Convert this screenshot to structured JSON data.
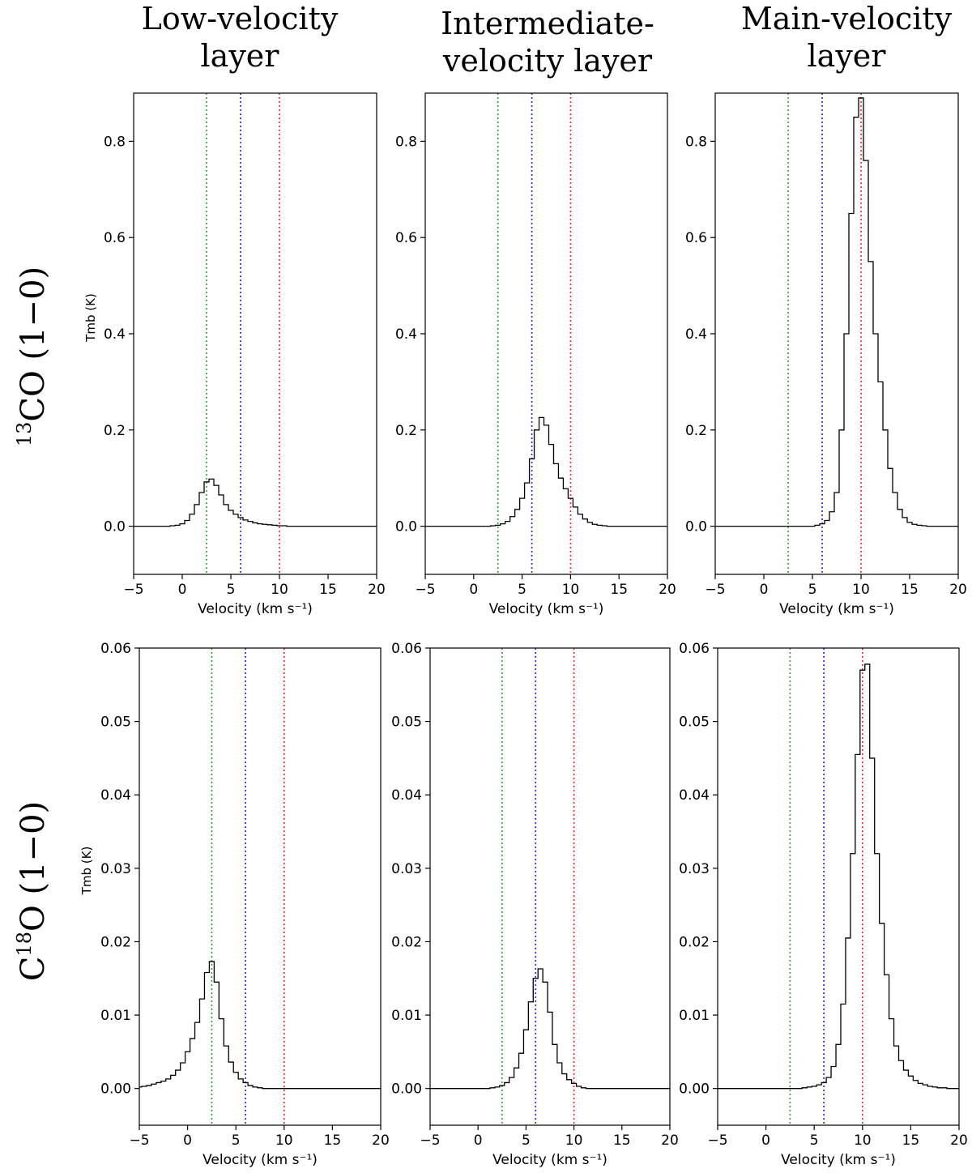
{
  "column_titles": [
    {
      "line1": "Low-velocity",
      "line2": "layer"
    },
    {
      "line1": "Intermediate-",
      "line2": "velocity layer"
    },
    {
      "line1": "Main-velocity",
      "line2": "layer"
    }
  ],
  "row_titles": [
    {
      "sup": "13",
      "main": "CO (1−0)",
      "prefix": ""
    },
    {
      "sup": "18",
      "main": "O (1−0)",
      "prefix": "C"
    }
  ],
  "colors": {
    "green": "#2ca02c",
    "blue": "#1f1fff",
    "red": "#ff2020",
    "line": "#000000"
  },
  "chart_data": [
    {
      "type": "line",
      "row": 0,
      "col": 0,
      "xlabel": "Velocity (km s⁻¹)",
      "ylabel": "Tmb (K)",
      "xlim": [
        -5,
        20
      ],
      "ylim": [
        -0.1,
        0.9
      ],
      "yticks": [
        0.0,
        0.2,
        0.4,
        0.6,
        0.8
      ],
      "ytick_labels": [
        "0.0",
        "0.2",
        "0.4",
        "0.6",
        "0.8"
      ],
      "xticks": [
        -5,
        0,
        5,
        10,
        15,
        20
      ],
      "vlines": [
        2.5,
        6,
        10
      ],
      "step": "mid",
      "x": [
        -5,
        -4.5,
        -4,
        -3.5,
        -3,
        -2.5,
        -2,
        -1.5,
        -1,
        -0.5,
        0,
        0.5,
        1,
        1.5,
        2,
        2.5,
        3,
        3.5,
        4,
        4.5,
        5,
        5.5,
        6,
        6.5,
        7,
        7.5,
        8,
        8.5,
        9,
        9.5,
        10,
        10.5,
        11,
        11.5,
        12,
        12.5,
        13,
        13.5,
        14,
        14.5,
        15,
        15.5,
        16,
        16.5,
        17,
        17.5,
        18,
        18.5,
        19,
        19.5,
        20
      ],
      "y": [
        0,
        0,
        0,
        0,
        0,
        0,
        0,
        0,
        0.001,
        0.002,
        0.005,
        0.012,
        0.025,
        0.045,
        0.07,
        0.092,
        0.098,
        0.085,
        0.065,
        0.045,
        0.033,
        0.025,
        0.018,
        0.013,
        0.01,
        0.007,
        0.005,
        0.004,
        0.003,
        0.002,
        0.001,
        0.001,
        0,
        0,
        0,
        0,
        0,
        0,
        0,
        0,
        0,
        0,
        0,
        0,
        0,
        0,
        0,
        0,
        0,
        0,
        0
      ]
    },
    {
      "type": "line",
      "row": 0,
      "col": 1,
      "xlabel": "Velocity (km s⁻¹)",
      "ylabel": "",
      "xlim": [
        -5,
        20
      ],
      "ylim": [
        -0.1,
        0.9
      ],
      "yticks": [
        0.0,
        0.2,
        0.4,
        0.6,
        0.8
      ],
      "ytick_labels": [
        "0.0",
        "0.2",
        "0.4",
        "0.6",
        "0.8"
      ],
      "xticks": [
        -5,
        0,
        5,
        10,
        15,
        20
      ],
      "vlines": [
        2.5,
        6,
        10
      ],
      "step": "mid",
      "x": [
        -5,
        -4.5,
        -4,
        -3.5,
        -3,
        -2.5,
        -2,
        -1.5,
        -1,
        -0.5,
        0,
        0.5,
        1,
        1.5,
        2,
        2.5,
        3,
        3.5,
        4,
        4.5,
        5,
        5.5,
        6,
        6.5,
        7,
        7.5,
        8,
        8.5,
        9,
        9.5,
        10,
        10.5,
        11,
        11.5,
        12,
        12.5,
        13,
        13.5,
        14,
        14.5,
        15,
        15.5,
        16,
        16.5,
        17,
        17.5,
        18,
        18.5,
        19,
        19.5,
        20
      ],
      "y": [
        0,
        0,
        0,
        0,
        0,
        0,
        0,
        0,
        0,
        0,
        0,
        0,
        0,
        0,
        0.001,
        0.002,
        0.005,
        0.01,
        0.02,
        0.035,
        0.058,
        0.09,
        0.14,
        0.2,
        0.226,
        0.21,
        0.17,
        0.13,
        0.1,
        0.078,
        0.058,
        0.04,
        0.025,
        0.015,
        0.008,
        0.004,
        0.002,
        0.001,
        0,
        0,
        0,
        0,
        0,
        0,
        0,
        0,
        0,
        0,
        0,
        0,
        0
      ]
    },
    {
      "type": "line",
      "row": 0,
      "col": 2,
      "xlabel": "Velocity (km s⁻¹)",
      "ylabel": "",
      "xlim": [
        -5,
        20
      ],
      "ylim": [
        -0.1,
        0.9
      ],
      "yticks": [
        0.0,
        0.2,
        0.4,
        0.6,
        0.8
      ],
      "ytick_labels": [
        "0.0",
        "0.2",
        "0.4",
        "0.6",
        "0.8"
      ],
      "xticks": [
        -5,
        0,
        5,
        10,
        15,
        20
      ],
      "vlines": [
        2.5,
        6,
        10
      ],
      "step": "mid",
      "x": [
        -5,
        -4.5,
        -4,
        -3.5,
        -3,
        -2.5,
        -2,
        -1.5,
        -1,
        -0.5,
        0,
        0.5,
        1,
        1.5,
        2,
        2.5,
        3,
        3.5,
        4,
        4.5,
        5,
        5.5,
        6,
        6.5,
        7,
        7.5,
        8,
        8.5,
        9,
        9.5,
        10,
        10.5,
        11,
        11.5,
        12,
        12.5,
        13,
        13.5,
        14,
        14.5,
        15,
        15.5,
        16,
        16.5,
        17,
        17.5,
        18,
        18.5,
        19,
        19.5,
        20
      ],
      "y": [
        0,
        0,
        0,
        0,
        0,
        0,
        0,
        0,
        0,
        0,
        0,
        0,
        0,
        0,
        0,
        0,
        0,
        0,
        0,
        0,
        0,
        0.002,
        0.005,
        0.012,
        0.03,
        0.07,
        0.2,
        0.4,
        0.65,
        0.85,
        0.89,
        0.76,
        0.55,
        0.4,
        0.3,
        0.2,
        0.12,
        0.07,
        0.035,
        0.018,
        0.008,
        0.004,
        0.002,
        0.001,
        0,
        0,
        0,
        0,
        0,
        0,
        0
      ]
    },
    {
      "type": "line",
      "row": 1,
      "col": 0,
      "xlabel": "Velocity (km s⁻¹)",
      "ylabel": "Tmb (K)",
      "xlim": [
        -5,
        20
      ],
      "ylim": [
        -0.005,
        0.06
      ],
      "yticks": [
        0.0,
        0.01,
        0.02,
        0.03,
        0.04,
        0.05,
        0.06
      ],
      "ytick_labels": [
        "0.00",
        "0.01",
        "0.02",
        "0.03",
        "0.04",
        "0.05",
        "0.06"
      ],
      "xticks": [
        -5,
        0,
        5,
        10,
        15,
        20
      ],
      "vlines": [
        2.5,
        6,
        10
      ],
      "step": "mid",
      "x": [
        -5,
        -4.5,
        -4,
        -3.5,
        -3,
        -2.5,
        -2,
        -1.5,
        -1,
        -0.5,
        0,
        0.5,
        1,
        1.5,
        2,
        2.5,
        3,
        3.5,
        4,
        4.5,
        5,
        5.5,
        6,
        6.5,
        7,
        7.5,
        8,
        8.5,
        9,
        9.5,
        10,
        10.5,
        11,
        11.5,
        12,
        12.5,
        13,
        13.5,
        14,
        14.5,
        15,
        15.5,
        16,
        16.5,
        17,
        17.5,
        18,
        18.5,
        19,
        19.5,
        20
      ],
      "y": [
        0.0002,
        0.0003,
        0.0004,
        0.0006,
        0.0008,
        0.001,
        0.0013,
        0.0018,
        0.0025,
        0.0035,
        0.005,
        0.0068,
        0.009,
        0.0122,
        0.0158,
        0.0173,
        0.0145,
        0.0095,
        0.0058,
        0.0036,
        0.0022,
        0.0013,
        0.0008,
        0.0004,
        0.0002,
        0.0001,
        0,
        0,
        0,
        0,
        0,
        0,
        0,
        0,
        0,
        0,
        0,
        0,
        0,
        0,
        0,
        0,
        0,
        0,
        0,
        0,
        0,
        0,
        0,
        0,
        0
      ]
    },
    {
      "type": "line",
      "row": 1,
      "col": 1,
      "xlabel": "Velocity (km s⁻¹)",
      "ylabel": "",
      "xlim": [
        -5,
        20
      ],
      "ylim": [
        -0.005,
        0.06
      ],
      "yticks": [
        0.0,
        0.01,
        0.02,
        0.03,
        0.04,
        0.05,
        0.06
      ],
      "ytick_labels": [
        "0.00",
        "0.01",
        "0.02",
        "0.03",
        "0.04",
        "0.05",
        "0.06"
      ],
      "xticks": [
        -5,
        0,
        5,
        10,
        15,
        20
      ],
      "vlines": [
        2.5,
        6,
        10
      ],
      "step": "mid",
      "x": [
        -5,
        -4.5,
        -4,
        -3.5,
        -3,
        -2.5,
        -2,
        -1.5,
        -1,
        -0.5,
        0,
        0.5,
        1,
        1.5,
        2,
        2.5,
        3,
        3.5,
        4,
        4.5,
        5,
        5.5,
        6,
        6.5,
        7,
        7.5,
        8,
        8.5,
        9,
        9.5,
        10,
        10.5,
        11,
        11.5,
        12,
        12.5,
        13,
        13.5,
        14,
        14.5,
        15,
        15.5,
        16,
        16.5,
        17,
        17.5,
        18,
        18.5,
        19,
        19.5,
        20
      ],
      "y": [
        0,
        0,
        0,
        0,
        0,
        0,
        0,
        0,
        0,
        0,
        0,
        0,
        0,
        0.0001,
        0.0002,
        0.0004,
        0.0008,
        0.0015,
        0.0028,
        0.0048,
        0.008,
        0.0118,
        0.015,
        0.0163,
        0.0145,
        0.0104,
        0.006,
        0.0035,
        0.002,
        0.0012,
        0.0007,
        0.0003,
        0.0001,
        0,
        0,
        0,
        0,
        0,
        0,
        0,
        0,
        0,
        0,
        0,
        0,
        0,
        0,
        0,
        0,
        0,
        0
      ]
    },
    {
      "type": "line",
      "row": 1,
      "col": 2,
      "xlabel": "Velocity (km s⁻¹)",
      "ylabel": "",
      "xlim": [
        -5,
        20
      ],
      "ylim": [
        -0.005,
        0.06
      ],
      "yticks": [
        0.0,
        0.01,
        0.02,
        0.03,
        0.04,
        0.05,
        0.06
      ],
      "ytick_labels": [
        "0.00",
        "0.01",
        "0.02",
        "0.03",
        "0.04",
        "0.05",
        "0.06"
      ],
      "xticks": [
        -5,
        0,
        5,
        10,
        15,
        20
      ],
      "vlines": [
        2.5,
        6,
        10
      ],
      "step": "mid",
      "x": [
        -5,
        -4.5,
        -4,
        -3.5,
        -3,
        -2.5,
        -2,
        -1.5,
        -1,
        -0.5,
        0,
        0.5,
        1,
        1.5,
        2,
        2.5,
        3,
        3.5,
        4,
        4.5,
        5,
        5.5,
        6,
        6.5,
        7,
        7.5,
        8,
        8.5,
        9,
        9.5,
        10,
        10.5,
        11,
        11.5,
        12,
        12.5,
        13,
        13.5,
        14,
        14.5,
        15,
        15.5,
        16,
        16.5,
        17,
        17.5,
        18,
        18.5,
        19,
        19.5,
        20
      ],
      "y": [
        0,
        0,
        0,
        0,
        0,
        0,
        0,
        0,
        0,
        0,
        0,
        0,
        0,
        0,
        0,
        0,
        0,
        0,
        0.0001,
        0.0002,
        0.0003,
        0.0005,
        0.0008,
        0.0015,
        0.003,
        0.006,
        0.0115,
        0.0205,
        0.032,
        0.0455,
        0.057,
        0.0578,
        0.045,
        0.032,
        0.0225,
        0.0155,
        0.0095,
        0.0058,
        0.0038,
        0.0025,
        0.0017,
        0.0011,
        0.0007,
        0.0005,
        0.0003,
        0.0002,
        0.0001,
        0.0001,
        0,
        0,
        0
      ]
    }
  ]
}
